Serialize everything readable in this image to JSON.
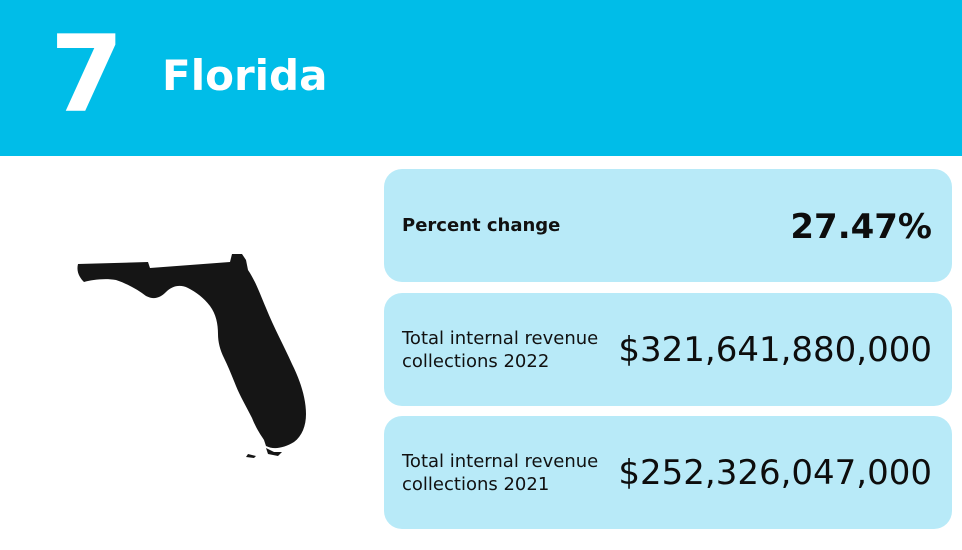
{
  "header": {
    "rank": "7",
    "state": "Florida",
    "background_color": "#00bde8"
  },
  "map": {
    "icon": "florida-map-icon",
    "color": "#151515"
  },
  "cards": {
    "percent_change": {
      "label": "Percent change",
      "value": "27.47%"
    },
    "collections_2022": {
      "label_line1": "Total internal revenue",
      "label_line2": "collections 2022",
      "value": "$321,641,880,000"
    },
    "collections_2021": {
      "label_line1": "Total internal revenue",
      "label_line2": "collections 2021",
      "value": "$252,326,047,000"
    },
    "card_color": "#b8eaf8"
  }
}
